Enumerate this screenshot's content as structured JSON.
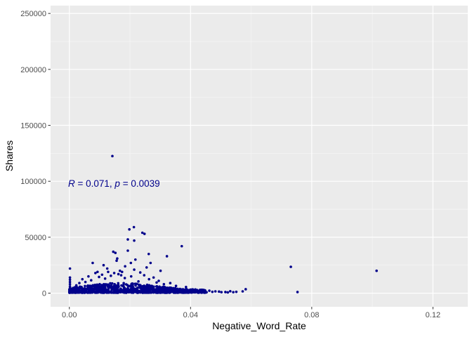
{
  "chart_data": {
    "type": "scatter",
    "title": "",
    "xlabel": "Negative_Word_Rate",
    "ylabel": "Shares",
    "xlim": [
      -0.0062,
      0.1315
    ],
    "ylim": [
      -12200,
      257000
    ],
    "x_ticks": [
      0.0,
      0.04,
      0.08,
      0.12
    ],
    "x_tick_labels": [
      "0.00",
      "0.04",
      "0.08",
      "0.12"
    ],
    "y_ticks": [
      0,
      50000,
      100000,
      150000,
      200000,
      250000
    ],
    "y_tick_labels": [
      "0",
      "50000",
      "100000",
      "150000",
      "200000",
      "250000"
    ],
    "grid": true,
    "legend": "none",
    "point_color": "#00008b",
    "panel_color": "#ebebeb",
    "annotation": {
      "r_symbol": "R",
      "r_text": " = 0.071, ",
      "p_symbol": "p",
      "p_text": " = 0.0039",
      "x": 0.0,
      "y": 100000
    },
    "points": [
      [
        0.0142,
        122500
      ],
      [
        0.0213,
        59000
      ],
      [
        0.0198,
        57000
      ],
      [
        0.0241,
        54000
      ],
      [
        0.0248,
        53000
      ],
      [
        0.0214,
        47000
      ],
      [
        0.0193,
        48000
      ],
      [
        0.0371,
        42000
      ],
      [
        0.0145,
        37000
      ],
      [
        0.0152,
        36000
      ],
      [
        0.0193,
        38000
      ],
      [
        0.0262,
        35000
      ],
      [
        0.0322,
        33000
      ],
      [
        0.0158,
        31000
      ],
      [
        0.0218,
        30000
      ],
      [
        0.0156,
        29000
      ],
      [
        0.0077,
        27000
      ],
      [
        0.0113,
        25000
      ],
      [
        0.0203,
        27000
      ],
      [
        0.0184,
        24000
      ],
      [
        0.0268,
        27000
      ],
      [
        0.0731,
        23500
      ],
      [
        0.0753,
        1000
      ],
      [
        0.1014,
        20000
      ],
      [
        0.0002,
        22000
      ],
      [
        0.0125,
        22000
      ],
      [
        0.0214,
        21000
      ],
      [
        0.0255,
        23000
      ],
      [
        0.0093,
        19000
      ],
      [
        0.0167,
        20000
      ],
      [
        0.0174,
        19000
      ],
      [
        0.0301,
        20000
      ],
      [
        0.0002,
        14000
      ],
      [
        0.0002,
        12000
      ],
      [
        0.0002,
        10000
      ],
      [
        0.0002,
        8000
      ],
      [
        0.0002,
        6000
      ],
      [
        0.0002,
        4500
      ],
      [
        0.0002,
        3000
      ],
      [
        0.0002,
        1800
      ],
      [
        0.0002,
        900
      ],
      [
        0.0002,
        400
      ],
      [
        0.0582,
        3500
      ],
      [
        0.0551,
        1200
      ],
      [
        0.0523,
        700
      ],
      [
        0.0502,
        900
      ],
      [
        0.0482,
        1600
      ],
      [
        0.0462,
        2200
      ],
      [
        0.0447,
        1200
      ],
      [
        0.0427,
        1100
      ],
      [
        0.0412,
        1500
      ],
      [
        0.0392,
        2600
      ],
      [
        0.0572,
        1600
      ],
      [
        0.0531,
        1700
      ],
      [
        0.0385,
        5500
      ],
      [
        0.0352,
        6500
      ],
      [
        0.0333,
        9000
      ],
      [
        0.0312,
        8000
      ],
      [
        0.0295,
        11000
      ],
      [
        0.0278,
        14000
      ],
      [
        0.0263,
        12500
      ],
      [
        0.0247,
        16000
      ],
      [
        0.0228,
        10500
      ],
      [
        0.0204,
        15000
      ],
      [
        0.0183,
        13500
      ],
      [
        0.0162,
        17000
      ],
      [
        0.0137,
        15500
      ],
      [
        0.0118,
        13000
      ],
      [
        0.0098,
        14500
      ],
      [
        0.0072,
        11500
      ],
      [
        0.0053,
        10000
      ],
      [
        0.0033,
        9000
      ],
      [
        0.0023,
        7000
      ],
      [
        0.0043,
        12500
      ],
      [
        0.0063,
        15000
      ],
      [
        0.0086,
        18000
      ],
      [
        0.0108,
        16500
      ],
      [
        0.0128,
        19000
      ],
      [
        0.0148,
        18000
      ],
      [
        0.0171,
        16000
      ],
      [
        0.0234,
        18500
      ],
      [
        0.0288,
        9500
      ],
      [
        0.0343,
        4500
      ],
      [
        0.0365,
        3800
      ],
      [
        0.0402,
        2800
      ],
      [
        0.0416,
        3300
      ],
      [
        0.0435,
        2100
      ],
      [
        0.0472,
        1200
      ],
      [
        0.0494,
        1400
      ],
      [
        0.0515,
        1000
      ],
      [
        0.0453,
        800
      ],
      [
        0.0541,
        900
      ]
    ],
    "dense_band": {
      "x_range": [
        0.0,
        0.045
      ],
      "typical_y_max": 6500,
      "typical_y_min": 400
    }
  }
}
